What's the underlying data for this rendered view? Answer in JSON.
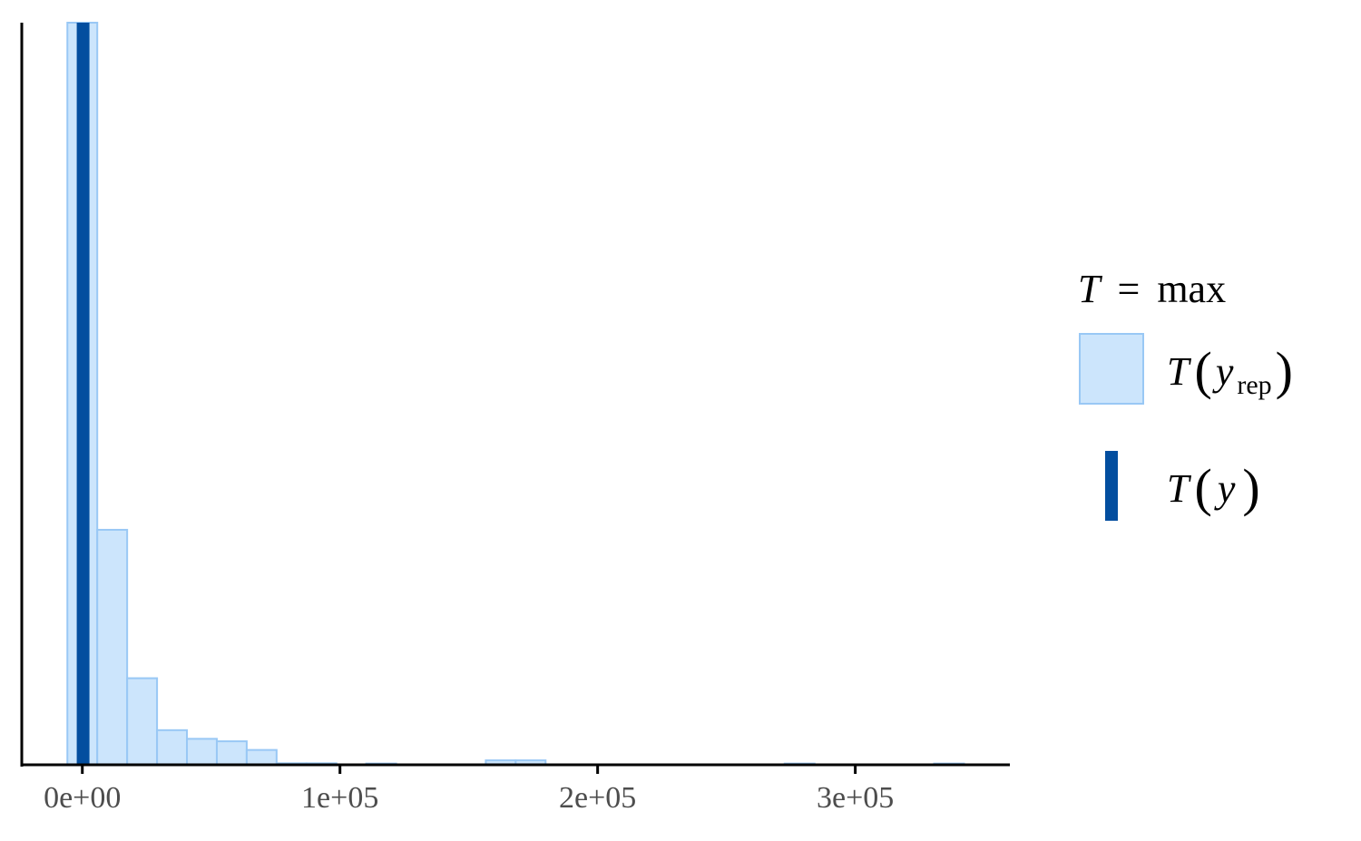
{
  "chart_data": {
    "type": "histogram",
    "title": "",
    "xlabel": "",
    "ylabel": "",
    "xlim": [
      -23500,
      360000
    ],
    "x_ticks": [
      {
        "value": 0,
        "label": "0e+00"
      },
      {
        "value": 100000,
        "label": "1e+05"
      },
      {
        "value": 200000,
        "label": "2e+05"
      },
      {
        "value": 300000,
        "label": "3e+05"
      }
    ],
    "y_axis_labels_shown": false,
    "grid": false,
    "bins": [
      {
        "x0": -5800,
        "x1": 5800,
        "count": 3150
      },
      {
        "x0": 5800,
        "x1": 17400,
        "count": 950
      },
      {
        "x0": 17400,
        "x1": 29000,
        "count": 350
      },
      {
        "x0": 29000,
        "x1": 40600,
        "count": 140
      },
      {
        "x0": 40600,
        "x1": 52200,
        "count": 105
      },
      {
        "x0": 52200,
        "x1": 63800,
        "count": 95
      },
      {
        "x0": 63800,
        "x1": 75400,
        "count": 60
      },
      {
        "x0": 75400,
        "x1": 87000,
        "count": 6
      },
      {
        "x0": 87000,
        "x1": 98600,
        "count": 6
      },
      {
        "x0": 110200,
        "x1": 121800,
        "count": 5
      },
      {
        "x0": 156600,
        "x1": 168200,
        "count": 18
      },
      {
        "x0": 168200,
        "x1": 179800,
        "count": 18
      },
      {
        "x0": 272600,
        "x1": 284200,
        "count": 5
      },
      {
        "x0": 330600,
        "x1": 342200,
        "count": 5
      }
    ],
    "ylim": [
      0,
      3000
    ],
    "observed_value": 300,
    "colors": {
      "rep_fill": "#cce5fc",
      "rep_stroke": "#99c8f5",
      "observed": "#034e9f",
      "axis": "#000000"
    },
    "legend": {
      "title_symbol": "T",
      "title_equals": "=",
      "title_stat": "max",
      "position": "right",
      "items": [
        {
          "key": "yrep",
          "symbol": "T",
          "var": "y",
          "sub": "rep"
        },
        {
          "key": "y",
          "symbol": "T",
          "var": "y",
          "sub": ""
        }
      ]
    }
  }
}
